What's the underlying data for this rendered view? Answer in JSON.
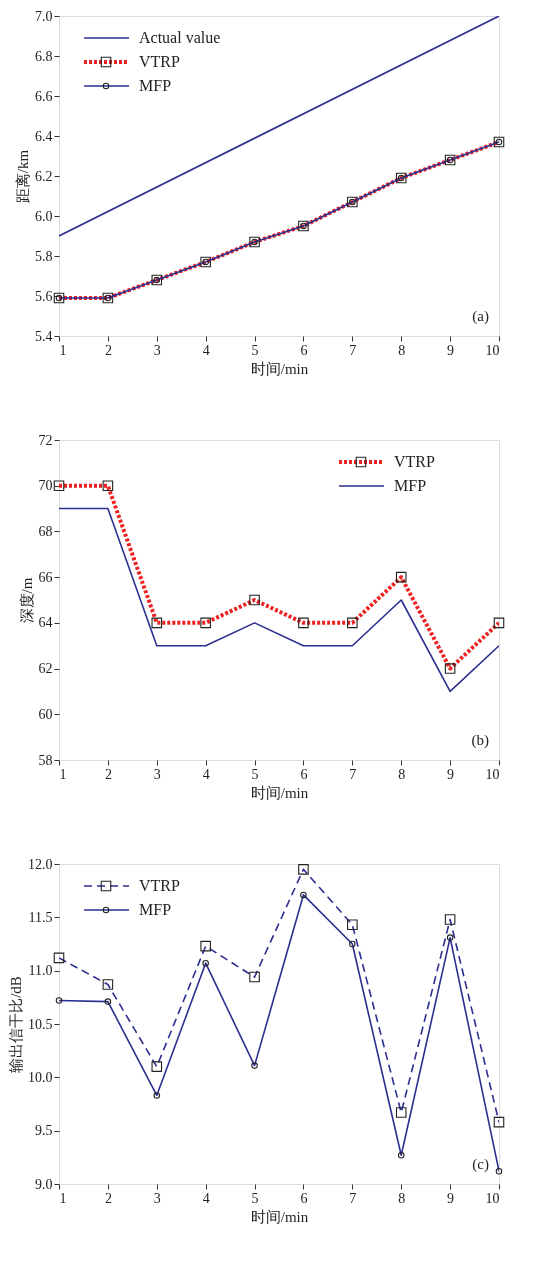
{
  "chart_data": [
    {
      "type": "line",
      "xlabel": "时间/min",
      "ylabel": "距离/km",
      "x": [
        1,
        2,
        3,
        4,
        5,
        6,
        7,
        8,
        9,
        10
      ],
      "xlim": [
        1,
        10
      ],
      "xticks": [
        1,
        2,
        3,
        4,
        5,
        6,
        7,
        8,
        9,
        10
      ],
      "ylim": [
        5.4,
        7.0
      ],
      "yticks": [
        5.4,
        5.6,
        5.8,
        {
          "value": 6,
          "label": "6.0"
        },
        6.2,
        6.4,
        6.6,
        6.8,
        {
          "value": 7,
          "label": "7.0"
        }
      ],
      "grid": false,
      "legend": "top left",
      "annotations": [
        "(a)"
      ],
      "series": [
        {
          "name": "Actual value",
          "color": "#2b2f8f",
          "x": [
            1,
            10
          ],
          "values": [
            5.9,
            7.0
          ],
          "marker": "none",
          "line_style": "solid"
        },
        {
          "name": "VTRP",
          "color": "#ee2222",
          "values": [
            5.59,
            5.59,
            5.68,
            5.77,
            5.87,
            5.95,
            6.07,
            6.19,
            6.28,
            6.37
          ],
          "marker": "square",
          "line_style": "dotted"
        },
        {
          "name": "MFP",
          "color": "#2b2f8f",
          "values": [
            5.59,
            5.59,
            5.68,
            5.77,
            5.87,
            5.95,
            6.07,
            6.19,
            6.28,
            6.37
          ],
          "marker": "circle",
          "line_style": "solid"
        }
      ]
    },
    {
      "type": "line",
      "xlabel": "时间/min",
      "ylabel": "深度/m",
      "x": [
        1,
        2,
        3,
        4,
        5,
        6,
        7,
        8,
        9,
        10
      ],
      "xlim": [
        1,
        10
      ],
      "xticks": [
        1,
        2,
        3,
        4,
        5,
        6,
        7,
        8,
        9,
        10
      ],
      "ylim": [
        58,
        72
      ],
      "yticks": [
        58,
        60,
        62,
        64,
        66,
        68,
        70,
        72
      ],
      "grid": false,
      "legend": "top right",
      "annotations": [
        "(b)"
      ],
      "series": [
        {
          "name": "VTRP",
          "color": "#ee2222",
          "values": [
            70,
            70,
            64,
            64,
            65,
            64,
            64,
            66,
            62,
            64
          ],
          "marker": "square",
          "line_style": "dotted"
        },
        {
          "name": "MFP",
          "color": "#2b2f8f",
          "values": [
            69,
            69,
            63,
            63,
            64,
            63,
            63,
            65,
            61,
            63
          ],
          "marker": "none",
          "line_style": "solid"
        }
      ]
    },
    {
      "type": "line",
      "xlabel": "时间/min",
      "ylabel": "输出信干比/dB",
      "x": [
        1,
        2,
        3,
        4,
        5,
        6,
        7,
        8,
        9,
        10
      ],
      "xlim": [
        1,
        10
      ],
      "xticks": [
        1,
        2,
        3,
        4,
        5,
        6,
        7,
        8,
        9,
        10
      ],
      "ylim": [
        9.0,
        12.0
      ],
      "yticks": [
        {
          "value": 9,
          "label": "9.0"
        },
        9.5,
        {
          "value": 10,
          "label": "10.0"
        },
        10.5,
        {
          "value": 11,
          "label": "11.0"
        },
        11.5,
        {
          "value": 12,
          "label": "12.0"
        }
      ],
      "grid": false,
      "legend": "top left",
      "annotations": [
        "(c)"
      ],
      "series": [
        {
          "name": "VTRP",
          "color": "#2b2f8f",
          "values": [
            11.12,
            10.87,
            10.1,
            11.23,
            10.94,
            11.95,
            11.43,
            9.67,
            11.48,
            9.58
          ],
          "marker": "square",
          "line_style": "dashed"
        },
        {
          "name": "MFP",
          "color": "#2b2f8f",
          "values": [
            10.72,
            10.71,
            9.83,
            11.07,
            10.11,
            11.71,
            11.25,
            9.27,
            11.31,
            9.12
          ],
          "marker": "circle",
          "line_style": "solid"
        }
      ]
    }
  ]
}
